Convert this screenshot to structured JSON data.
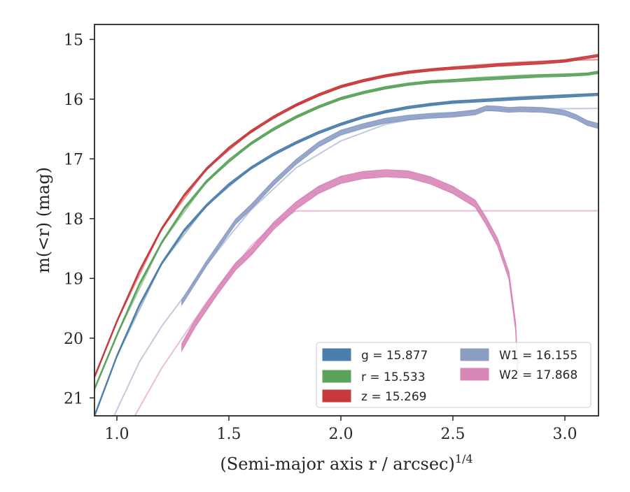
{
  "chart_data": {
    "type": "line",
    "title": "",
    "xlabel": "(Semi-major axis r / arcsec)",
    "xlabel_power": "1/4",
    "ylabel": "m(<r) (mag)",
    "xlim": [
      0.9,
      3.15
    ],
    "ylim": [
      21.3,
      14.75
    ],
    "y_inverted": true,
    "xticks": [
      "1.0",
      "1.5",
      "2.0",
      "2.5",
      "3.0"
    ],
    "xtick_values": [
      1.0,
      1.5,
      2.0,
      2.5,
      3.0
    ],
    "yticks": [
      "15",
      "16",
      "17",
      "18",
      "19",
      "20",
      "21"
    ],
    "ytick_values": [
      15,
      16,
      17,
      18,
      19,
      20,
      21
    ],
    "grid": false,
    "legend_position": "lower-right",
    "series": [
      {
        "name": "g",
        "label": "g = 15.877",
        "color": "#4c7eab",
        "band_width": 0.04,
        "data": [
          [
            0.9,
            21.3
          ],
          [
            1.0,
            20.3
          ],
          [
            1.1,
            19.45
          ],
          [
            1.2,
            18.75
          ],
          [
            1.3,
            18.2
          ],
          [
            1.4,
            17.78
          ],
          [
            1.5,
            17.43
          ],
          [
            1.6,
            17.15
          ],
          [
            1.7,
            16.92
          ],
          [
            1.8,
            16.73
          ],
          [
            1.9,
            16.56
          ],
          [
            2.0,
            16.42
          ],
          [
            2.1,
            16.3
          ],
          [
            2.2,
            16.21
          ],
          [
            2.3,
            16.14
          ],
          [
            2.4,
            16.09
          ],
          [
            2.5,
            16.05
          ],
          [
            2.6,
            16.03
          ],
          [
            2.7,
            16.01
          ],
          [
            2.8,
            15.99
          ],
          [
            2.9,
            15.97
          ],
          [
            3.0,
            15.95
          ],
          [
            3.15,
            15.92
          ]
        ],
        "model": [
          [
            0.9,
            21.3
          ],
          [
            1.0,
            20.3
          ],
          [
            1.2,
            18.75
          ],
          [
            1.4,
            17.78
          ],
          [
            1.6,
            17.15
          ],
          [
            1.8,
            16.73
          ],
          [
            2.0,
            16.42
          ],
          [
            2.2,
            16.21
          ],
          [
            2.4,
            16.09
          ],
          [
            2.6,
            16.01
          ],
          [
            2.8,
            15.96
          ],
          [
            3.0,
            15.93
          ],
          [
            3.15,
            15.91
          ]
        ]
      },
      {
        "name": "r",
        "label": "r = 15.533",
        "color": "#5aa35a",
        "band_width": 0.04,
        "data": [
          [
            0.9,
            20.85
          ],
          [
            1.0,
            19.95
          ],
          [
            1.1,
            19.1
          ],
          [
            1.2,
            18.4
          ],
          [
            1.3,
            17.83
          ],
          [
            1.4,
            17.38
          ],
          [
            1.5,
            17.03
          ],
          [
            1.6,
            16.74
          ],
          [
            1.7,
            16.5
          ],
          [
            1.8,
            16.3
          ],
          [
            1.9,
            16.13
          ],
          [
            2.0,
            15.99
          ],
          [
            2.1,
            15.89
          ],
          [
            2.2,
            15.81
          ],
          [
            2.3,
            15.75
          ],
          [
            2.4,
            15.71
          ],
          [
            2.5,
            15.69
          ],
          [
            2.6,
            15.67
          ],
          [
            2.7,
            15.65
          ],
          [
            2.8,
            15.63
          ],
          [
            2.9,
            15.61
          ],
          [
            3.0,
            15.6
          ],
          [
            3.1,
            15.58
          ],
          [
            3.15,
            15.55
          ]
        ],
        "model": [
          [
            0.9,
            20.85
          ],
          [
            1.0,
            19.95
          ],
          [
            1.2,
            18.4
          ],
          [
            1.4,
            17.38
          ],
          [
            1.6,
            16.74
          ],
          [
            1.8,
            16.3
          ],
          [
            2.0,
            15.99
          ],
          [
            2.2,
            15.81
          ],
          [
            2.4,
            15.71
          ],
          [
            2.6,
            15.64
          ],
          [
            2.8,
            15.6
          ],
          [
            3.0,
            15.58
          ],
          [
            3.15,
            15.57
          ]
        ]
      },
      {
        "name": "z",
        "label": "z = 15.269",
        "color": "#c8393b",
        "band_width": 0.04,
        "data": [
          [
            0.9,
            20.65
          ],
          [
            1.0,
            19.72
          ],
          [
            1.1,
            18.88
          ],
          [
            1.2,
            18.17
          ],
          [
            1.3,
            17.61
          ],
          [
            1.4,
            17.17
          ],
          [
            1.5,
            16.82
          ],
          [
            1.6,
            16.54
          ],
          [
            1.7,
            16.3
          ],
          [
            1.8,
            16.1
          ],
          [
            1.9,
            15.93
          ],
          [
            2.0,
            15.79
          ],
          [
            2.1,
            15.69
          ],
          [
            2.2,
            15.61
          ],
          [
            2.3,
            15.55
          ],
          [
            2.4,
            15.51
          ],
          [
            2.5,
            15.48
          ],
          [
            2.6,
            15.46
          ],
          [
            2.7,
            15.43
          ],
          [
            2.8,
            15.41
          ],
          [
            2.9,
            15.39
          ],
          [
            3.0,
            15.36
          ],
          [
            3.1,
            15.3
          ],
          [
            3.15,
            15.27
          ]
        ],
        "model": [
          [
            0.9,
            20.65
          ],
          [
            1.0,
            19.72
          ],
          [
            1.2,
            18.17
          ],
          [
            1.4,
            17.17
          ],
          [
            1.6,
            16.54
          ],
          [
            1.8,
            16.1
          ],
          [
            2.0,
            15.79
          ],
          [
            2.2,
            15.61
          ],
          [
            2.4,
            15.5
          ],
          [
            2.6,
            15.43
          ],
          [
            2.8,
            15.38
          ],
          [
            3.0,
            15.35
          ],
          [
            3.15,
            15.34
          ]
        ]
      },
      {
        "name": "W1",
        "label": "W1 = 16.155",
        "color": "#8c9dc4",
        "band_width": 0.08,
        "data": [
          [
            1.29,
            19.4
          ],
          [
            1.4,
            18.75
          ],
          [
            1.53,
            18.05
          ],
          [
            1.6,
            17.8
          ],
          [
            1.7,
            17.4
          ],
          [
            1.8,
            17.05
          ],
          [
            1.9,
            16.76
          ],
          [
            2.0,
            16.56
          ],
          [
            2.1,
            16.45
          ],
          [
            2.2,
            16.36
          ],
          [
            2.3,
            16.31
          ],
          [
            2.4,
            16.28
          ],
          [
            2.5,
            16.26
          ],
          [
            2.6,
            16.22
          ],
          [
            2.65,
            16.15
          ],
          [
            2.7,
            16.16
          ],
          [
            2.75,
            16.18
          ],
          [
            2.8,
            16.17
          ],
          [
            2.9,
            16.18
          ],
          [
            2.95,
            16.2
          ],
          [
            3.0,
            16.23
          ],
          [
            3.05,
            16.3
          ],
          [
            3.1,
            16.4
          ],
          [
            3.15,
            16.45
          ]
        ],
        "model": [
          [
            0.9,
            22.0
          ],
          [
            1.0,
            21.2
          ],
          [
            1.1,
            20.4
          ],
          [
            1.2,
            19.8
          ],
          [
            1.3,
            19.3
          ],
          [
            1.4,
            18.78
          ],
          [
            1.5,
            18.3
          ],
          [
            1.6,
            17.85
          ],
          [
            1.8,
            17.15
          ],
          [
            2.0,
            16.7
          ],
          [
            2.2,
            16.42
          ],
          [
            2.4,
            16.28
          ],
          [
            2.6,
            16.2
          ],
          [
            2.8,
            16.17
          ],
          [
            3.0,
            16.16
          ],
          [
            3.15,
            16.155
          ]
        ]
      },
      {
        "name": "W2",
        "label": "W2 = 17.868",
        "color": "#d885b8",
        "band_width": 0.12,
        "data": [
          [
            1.29,
            20.15
          ],
          [
            1.35,
            19.75
          ],
          [
            1.45,
            19.2
          ],
          [
            1.53,
            18.8
          ],
          [
            1.6,
            18.55
          ],
          [
            1.7,
            18.12
          ],
          [
            1.8,
            17.78
          ],
          [
            1.9,
            17.52
          ],
          [
            2.0,
            17.35
          ],
          [
            2.1,
            17.27
          ],
          [
            2.2,
            17.24
          ],
          [
            2.3,
            17.26
          ],
          [
            2.4,
            17.36
          ],
          [
            2.5,
            17.52
          ],
          [
            2.6,
            17.75
          ],
          [
            2.65,
            18.05
          ],
          [
            2.7,
            18.4
          ],
          [
            2.75,
            18.95
          ],
          [
            2.78,
            19.8
          ],
          [
            2.79,
            20.6
          ]
        ],
        "model": [
          [
            1.08,
            21.3
          ],
          [
            1.2,
            20.5
          ],
          [
            1.4,
            19.4
          ],
          [
            1.6,
            18.45
          ],
          [
            1.7,
            18.1
          ],
          [
            1.8,
            17.87
          ],
          [
            2.0,
            17.868
          ],
          [
            3.15,
            17.868
          ]
        ]
      }
    ]
  }
}
